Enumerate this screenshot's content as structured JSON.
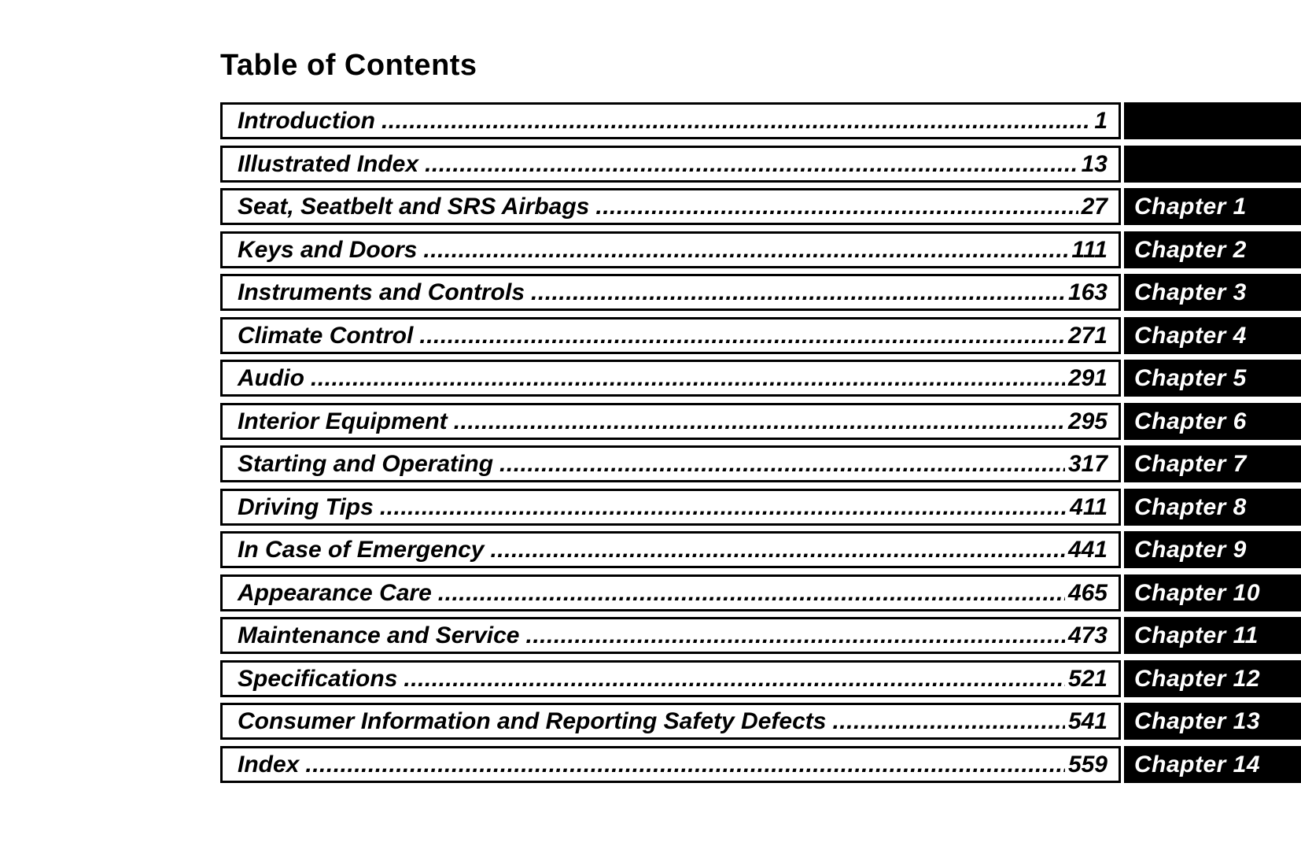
{
  "page": {
    "title": "Table of Contents",
    "dot_leader": ".........................................................................................................................................................................................................."
  },
  "colors": {
    "page_bg": "#ffffff",
    "text": "#000000",
    "bar_bg": "#000000",
    "bar_text": "#ffffff"
  },
  "toc": {
    "rows": [
      {
        "title": "Introduction",
        "page": "1",
        "chapter": ""
      },
      {
        "title": "Illustrated Index",
        "page": "13",
        "chapter": ""
      },
      {
        "title": "Seat, Seatbelt and SRS Airbags",
        "page": "27",
        "chapter": "Chapter 1"
      },
      {
        "title": "Keys and Doors",
        "page": "111",
        "chapter": "Chapter 2"
      },
      {
        "title": "Instruments and Controls",
        "page": "163",
        "chapter": "Chapter 3"
      },
      {
        "title": "Climate Control",
        "page": "271",
        "chapter": "Chapter 4"
      },
      {
        "title": "Audio",
        "page": "291",
        "chapter": "Chapter 5"
      },
      {
        "title": "Interior Equipment",
        "page": "295",
        "chapter": "Chapter 6"
      },
      {
        "title": "Starting and Operating",
        "page": "317",
        "chapter": "Chapter 7"
      },
      {
        "title": "Driving Tips",
        "page": "411",
        "chapter": "Chapter 8"
      },
      {
        "title": "In Case of Emergency",
        "page": "441",
        "chapter": "Chapter 9"
      },
      {
        "title": "Appearance Care",
        "page": "465",
        "chapter": "Chapter 10"
      },
      {
        "title": "Maintenance and Service",
        "page": "473",
        "chapter": "Chapter 11"
      },
      {
        "title": "Specifications",
        "page": "521",
        "chapter": "Chapter 12"
      },
      {
        "title": "Consumer Information and Reporting Safety Defects",
        "page": "541",
        "chapter": "Chapter 13"
      },
      {
        "title": "Index",
        "page": "559",
        "chapter": "Chapter 14"
      }
    ]
  }
}
